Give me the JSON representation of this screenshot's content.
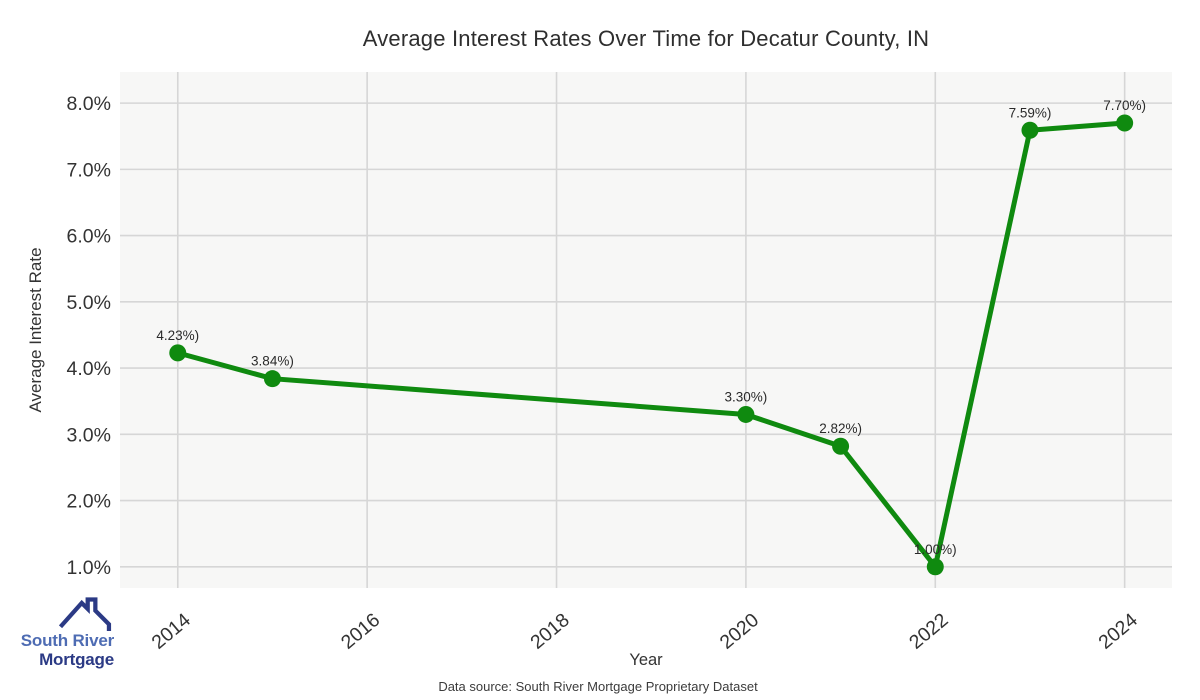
{
  "title": "Average Interest Rates Over Time for Decatur County, IN",
  "footer": {
    "source": "Data source: South River Mortgage Proprietary Dataset"
  },
  "logo": {
    "line1": "South River",
    "line2": "Mortgage",
    "color_primary": "#4e6cb3",
    "color_secondary": "#2b3a85"
  },
  "chart_data": {
    "type": "line",
    "title": "Average Interest Rates Over Time for Decatur County, IN",
    "xlabel": "Year",
    "ylabel": "Average Interest Rate",
    "x": [
      2014,
      2015,
      2020,
      2021,
      2022,
      2023,
      2024
    ],
    "values": [
      4.23,
      3.84,
      3.3,
      2.82,
      1.0,
      7.59,
      7.7
    ],
    "point_labels": [
      "4.23%)",
      "3.84%)",
      "3.30%)",
      "2.82%)",
      "1.00%)",
      "7.59%)",
      "7.70%)"
    ],
    "x_ticks": [
      {
        "value": 2014,
        "label": "2014"
      },
      {
        "value": 2016,
        "label": "2016"
      },
      {
        "value": 2018,
        "label": "2018"
      },
      {
        "value": 2020,
        "label": "2020"
      },
      {
        "value": 2022,
        "label": "2022"
      },
      {
        "value": 2024,
        "label": "2024"
      }
    ],
    "y_ticks": [
      {
        "value": 8.0,
        "label": "8.0%"
      },
      {
        "value": 7.0,
        "label": "7.0%"
      },
      {
        "value": 6.0,
        "label": "6.0%"
      },
      {
        "value": 5.0,
        "label": "5.0%"
      },
      {
        "value": 4.0,
        "label": "4.0%"
      },
      {
        "value": 3.0,
        "label": "3.0%"
      },
      {
        "value": 2.0,
        "label": "2.0%"
      },
      {
        "value": 1.0,
        "label": "1.0%"
      }
    ],
    "xlim": [
      2013.39,
      2024.5
    ],
    "ylim": [
      0.68,
      8.47
    ],
    "grid": true,
    "legend": "none",
    "line_color": "#0f8a0f",
    "plot_bg": "#f7f7f6",
    "grid_color": "#d6d6d6",
    "tick_color": "#333333",
    "label_color": "#2a2a2a"
  }
}
